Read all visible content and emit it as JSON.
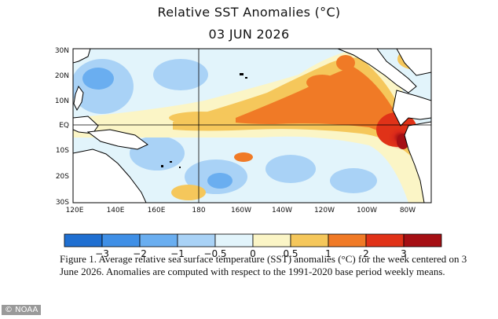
{
  "title": "Relative SST Anomalies (°C)",
  "subtitle": "03 JUN 2026",
  "map": {
    "lat_labels": [
      "30N",
      "20N",
      "10N",
      "EQ",
      "10S",
      "20S",
      "30S"
    ],
    "lon_labels": [
      "120E",
      "140E",
      "160E",
      "180",
      "160W",
      "140W",
      "120W",
      "100W",
      "80W"
    ],
    "region": {
      "lon_range": [
        "120E",
        "75W"
      ],
      "lat_range": [
        "30S",
        "30N"
      ]
    },
    "reference_lines": [
      "EQ",
      "180"
    ]
  },
  "colorbar": {
    "labels": [
      "−3",
      "−2",
      "−1",
      "−0.5",
      "0",
      "0.5",
      "1",
      "2",
      "3"
    ],
    "colors": [
      "#1f6fd1",
      "#3f8fe6",
      "#6aaef0",
      "#a9d2f6",
      "#e2f4fb",
      "#fbf5c6",
      "#f5c75b",
      "#f07a26",
      "#e03218",
      "#a50f14"
    ]
  },
  "caption": "Figure 1. Average relative sea surface temperature (SST) anomalies (°C) for the week centered on 3 June 2026.  Anomalies are computed with respect to the 1991-2020 base period weekly means.",
  "credit": "© NOAA"
}
